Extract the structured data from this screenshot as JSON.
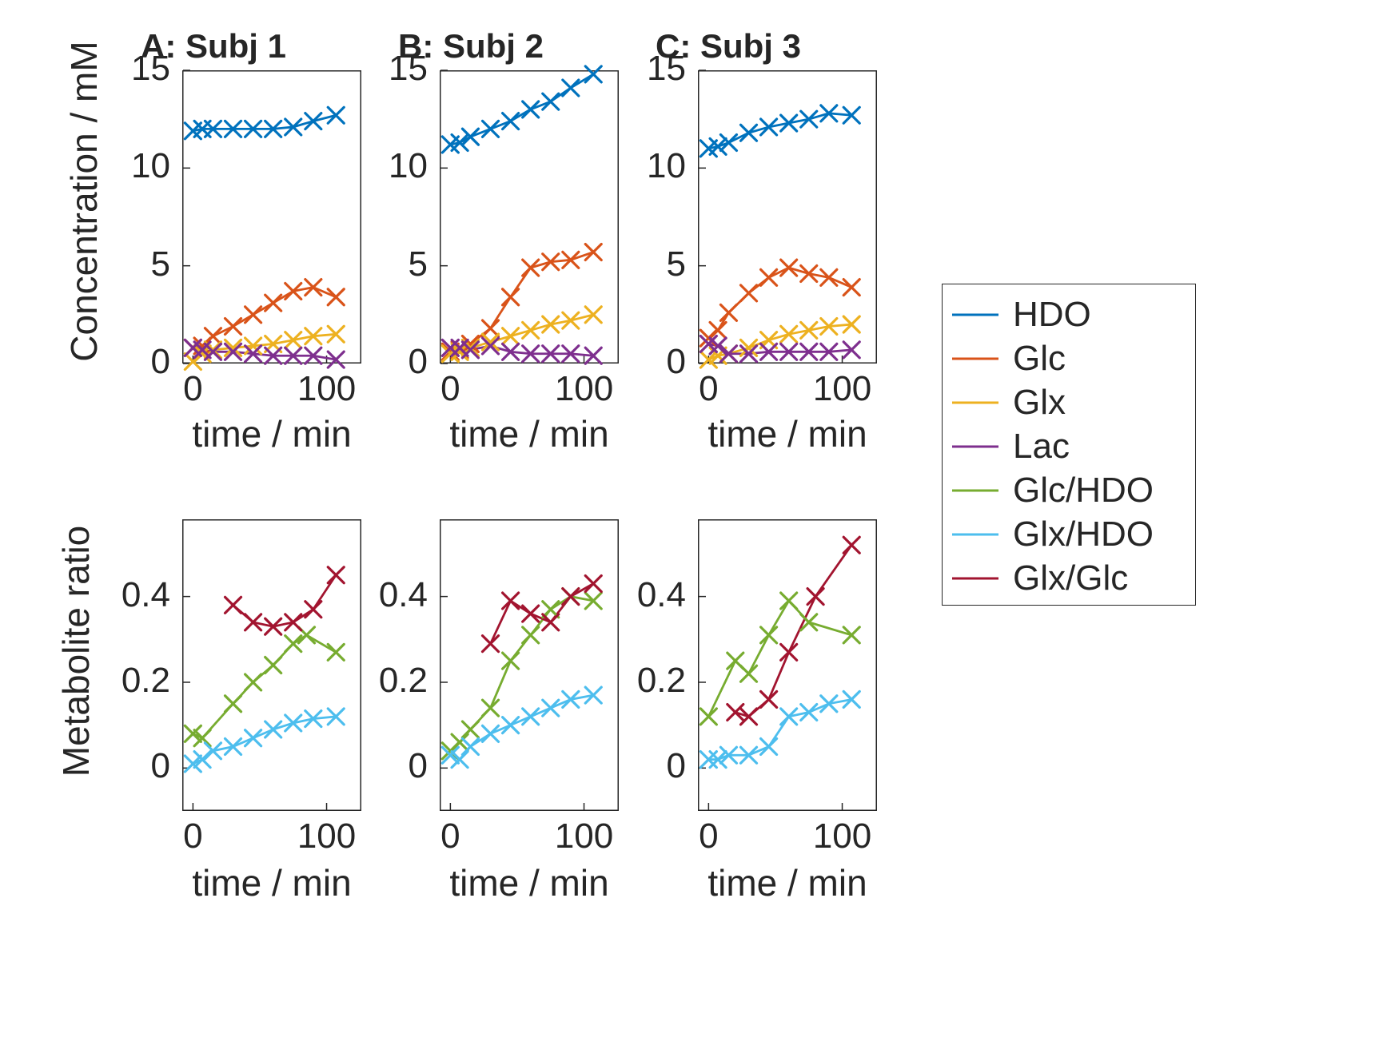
{
  "figure": {
    "background": "#ffffff",
    "text_color": "#262626",
    "frame_color": "#262626"
  },
  "legend": {
    "position": "right-outside",
    "entries": [
      {
        "label": "HDO",
        "color": "#0072BD"
      },
      {
        "label": "Glc",
        "color": "#D95319"
      },
      {
        "label": "Glx",
        "color": "#EDB120"
      },
      {
        "label": "Lac",
        "color": "#7E2F8E"
      },
      {
        "label": "Glc/HDO",
        "color": "#77AC30"
      },
      {
        "label": "Glx/HDO",
        "color": "#4DBEEE"
      },
      {
        "label": "Glx/Glc",
        "color": "#A2142F"
      }
    ]
  },
  "chart_data": [
    {
      "type": "line",
      "title": "A: Subj 1",
      "xlabel": "time / min",
      "ylabel": "Concentration / mM",
      "xlim": [
        -8,
        126
      ],
      "ylim": [
        0,
        15
      ],
      "xticks": [
        0,
        100
      ],
      "yticks": [
        0,
        5,
        10,
        15
      ],
      "grid": false,
      "series": [
        {
          "name": "HDO",
          "color": "#0072BD",
          "marker": "x",
          "x": [
            0,
            7,
            15,
            30,
            45,
            60,
            75,
            90,
            107
          ],
          "y": [
            11.9,
            12.0,
            12.0,
            12.0,
            12.0,
            12.0,
            12.1,
            12.4,
            12.7
          ]
        },
        {
          "name": "Glc",
          "color": "#D95319",
          "marker": "x",
          "x": [
            0,
            7,
            15,
            30,
            45,
            60,
            75,
            90,
            107
          ],
          "y": [
            0.8,
            0.9,
            1.4,
            1.9,
            2.5,
            3.1,
            3.7,
            3.9,
            3.4
          ]
        },
        {
          "name": "Glx",
          "color": "#EDB120",
          "marker": "x",
          "x": [
            0,
            7,
            15,
            30,
            45,
            60,
            75,
            90,
            107
          ],
          "y": [
            0.1,
            0.5,
            0.7,
            0.8,
            0.9,
            1.0,
            1.2,
            1.4,
            1.5
          ]
        },
        {
          "name": "Lac",
          "color": "#7E2F8E",
          "marker": "x",
          "x": [
            0,
            7,
            15,
            30,
            45,
            60,
            75,
            90,
            107
          ],
          "y": [
            0.8,
            0.7,
            0.6,
            0.6,
            0.5,
            0.4,
            0.4,
            0.4,
            0.2
          ]
        }
      ]
    },
    {
      "type": "line",
      "title": "B: Subj 2",
      "xlabel": "time / min",
      "ylabel": "",
      "xlim": [
        -8,
        126
      ],
      "ylim": [
        0,
        15
      ],
      "xticks": [
        0,
        100
      ],
      "yticks": [
        0,
        5,
        10,
        15
      ],
      "grid": false,
      "series": [
        {
          "name": "HDO",
          "color": "#0072BD",
          "marker": "x",
          "x": [
            0,
            7,
            15,
            30,
            45,
            60,
            75,
            90,
            107
          ],
          "y": [
            11.2,
            11.3,
            11.6,
            12.0,
            12.4,
            13.0,
            13.4,
            14.1,
            14.8
          ]
        },
        {
          "name": "Glc",
          "color": "#D95319",
          "marker": "x",
          "x": [
            0,
            7,
            15,
            30,
            45,
            60,
            75,
            90,
            107
          ],
          "y": [
            0.6,
            0.7,
            1.0,
            1.8,
            3.4,
            4.9,
            5.2,
            5.3,
            5.7
          ]
        },
        {
          "name": "Glx",
          "color": "#EDB120",
          "marker": "x",
          "x": [
            0,
            7,
            15,
            30,
            45,
            60,
            75,
            90,
            107
          ],
          "y": [
            0.5,
            0.6,
            0.8,
            1.1,
            1.4,
            1.7,
            2.0,
            2.2,
            2.5
          ]
        },
        {
          "name": "Lac",
          "color": "#7E2F8E",
          "marker": "x",
          "x": [
            0,
            7,
            15,
            30,
            45,
            60,
            75,
            90,
            107
          ],
          "y": [
            0.8,
            0.8,
            0.7,
            0.9,
            0.6,
            0.5,
            0.5,
            0.5,
            0.4
          ]
        }
      ]
    },
    {
      "type": "line",
      "title": "C: Subj 3",
      "xlabel": "time / min",
      "ylabel": "",
      "xlim": [
        -8,
        126
      ],
      "ylim": [
        0,
        15
      ],
      "xticks": [
        0,
        100
      ],
      "yticks": [
        0,
        5,
        10,
        15
      ],
      "grid": false,
      "series": [
        {
          "name": "HDO",
          "color": "#0072BD",
          "marker": "x",
          "x": [
            0,
            7,
            15,
            30,
            45,
            60,
            75,
            90,
            107
          ],
          "y": [
            11.0,
            11.1,
            11.3,
            11.8,
            12.1,
            12.3,
            12.5,
            12.8,
            12.7
          ]
        },
        {
          "name": "Glc",
          "color": "#D95319",
          "marker": "x",
          "x": [
            0,
            7,
            15,
            30,
            45,
            60,
            75,
            90,
            107
          ],
          "y": [
            1.3,
            1.7,
            2.6,
            3.6,
            4.4,
            4.9,
            4.6,
            4.4,
            3.9
          ]
        },
        {
          "name": "Glx",
          "color": "#EDB120",
          "marker": "x",
          "x": [
            0,
            7,
            15,
            30,
            45,
            60,
            75,
            90,
            107
          ],
          "y": [
            0.2,
            0.4,
            0.5,
            0.8,
            1.2,
            1.5,
            1.7,
            1.9,
            2.0
          ]
        },
        {
          "name": "Lac",
          "color": "#7E2F8E",
          "marker": "x",
          "x": [
            0,
            7,
            15,
            30,
            45,
            60,
            75,
            90,
            107
          ],
          "y": [
            1.0,
            0.9,
            0.5,
            0.5,
            0.6,
            0.6,
            0.6,
            0.6,
            0.7
          ]
        }
      ]
    },
    {
      "type": "line",
      "title": "",
      "xlabel": "time / min",
      "ylabel": "Metabolite ratio",
      "xlim": [
        -8,
        126
      ],
      "ylim": [
        -0.1,
        0.58
      ],
      "xticks": [
        0,
        100
      ],
      "yticks": [
        0,
        0.2,
        0.4
      ],
      "grid": false,
      "series": [
        {
          "name": "Glc/HDO",
          "color": "#77AC30",
          "marker": "x",
          "x": [
            0,
            7,
            30,
            45,
            60,
            75,
            85,
            107
          ],
          "y": [
            0.08,
            0.07,
            0.15,
            0.2,
            0.24,
            0.29,
            0.31,
            0.27
          ]
        },
        {
          "name": "Glx/HDO",
          "color": "#4DBEEE",
          "marker": "x",
          "x": [
            0,
            7,
            15,
            30,
            45,
            60,
            75,
            90,
            107
          ],
          "y": [
            0.01,
            0.02,
            0.04,
            0.05,
            0.07,
            0.09,
            0.105,
            0.115,
            0.12
          ]
        },
        {
          "name": "Glx/Glc",
          "color": "#A2142F",
          "marker": "x",
          "x": [
            30,
            45,
            60,
            75,
            90,
            107
          ],
          "y": [
            0.38,
            0.34,
            0.33,
            0.34,
            0.37,
            0.45
          ]
        }
      ]
    },
    {
      "type": "line",
      "title": "",
      "xlabel": "time / min",
      "ylabel": "",
      "xlim": [
        -8,
        126
      ],
      "ylim": [
        -0.1,
        0.58
      ],
      "xticks": [
        0,
        100
      ],
      "yticks": [
        0,
        0.2,
        0.4
      ],
      "grid": false,
      "series": [
        {
          "name": "Glc/HDO",
          "color": "#77AC30",
          "marker": "x",
          "x": [
            0,
            7,
            15,
            30,
            45,
            60,
            75,
            90,
            107
          ],
          "y": [
            0.04,
            0.06,
            0.09,
            0.14,
            0.25,
            0.31,
            0.37,
            0.4,
            0.39
          ]
        },
        {
          "name": "Glx/HDO",
          "color": "#4DBEEE",
          "marker": "x",
          "x": [
            0,
            7,
            15,
            30,
            45,
            60,
            75,
            90,
            107
          ],
          "y": [
            0.03,
            0.02,
            0.05,
            0.08,
            0.1,
            0.12,
            0.14,
            0.16,
            0.17
          ]
        },
        {
          "name": "Glx/Glc",
          "color": "#A2142F",
          "marker": "x",
          "x": [
            30,
            45,
            60,
            75,
            90,
            107
          ],
          "y": [
            0.29,
            0.39,
            0.36,
            0.34,
            0.4,
            0.43
          ]
        }
      ]
    },
    {
      "type": "line",
      "title": "",
      "xlabel": "time / min",
      "ylabel": "",
      "xlim": [
        -8,
        126
      ],
      "ylim": [
        -0.1,
        0.58
      ],
      "xticks": [
        0,
        100
      ],
      "yticks": [
        0,
        0.2,
        0.4
      ],
      "grid": false,
      "series": [
        {
          "name": "Glc/HDO",
          "color": "#77AC30",
          "marker": "x",
          "x": [
            0,
            20,
            30,
            45,
            60,
            75,
            107
          ],
          "y": [
            0.12,
            0.25,
            0.22,
            0.31,
            0.39,
            0.34,
            0.31
          ]
        },
        {
          "name": "Glx/HDO",
          "color": "#4DBEEE",
          "marker": "x",
          "x": [
            0,
            7,
            15,
            30,
            45,
            60,
            75,
            90,
            107
          ],
          "y": [
            0.02,
            0.02,
            0.03,
            0.03,
            0.05,
            0.12,
            0.13,
            0.15,
            0.16
          ]
        },
        {
          "name": "Glx/Glc",
          "color": "#A2142F",
          "marker": "x",
          "x": [
            20,
            30,
            45,
            60,
            80,
            107
          ],
          "y": [
            0.13,
            0.12,
            0.16,
            0.27,
            0.4,
            0.52
          ]
        }
      ]
    }
  ]
}
